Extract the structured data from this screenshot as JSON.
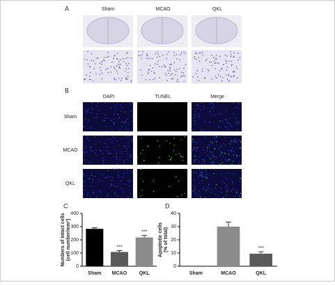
{
  "panel_a": {
    "label": "A",
    "columns": [
      "Sham",
      "MCAO",
      "QKL"
    ]
  },
  "panel_b": {
    "label": "B",
    "columns": [
      "DAPI",
      "TUNEL",
      "Merge"
    ],
    "rows": [
      "Sham",
      "MCAO",
      "QKL"
    ]
  },
  "chart_data": [
    {
      "type": "bar",
      "label": "C",
      "y_label": [
        "Numbers of intact cells",
        "(cell number/mm²)"
      ],
      "categories": [
        "Sham",
        "MCAO",
        "QKL"
      ],
      "values": [
        283,
        108,
        218
      ],
      "errors": [
        8,
        10,
        15
      ],
      "significance": [
        null,
        "***",
        "***"
      ],
      "colors": [
        "#000000",
        "#5a5a5a",
        "#8c8c8c"
      ],
      "ylim": [
        0,
        400
      ],
      "yticks": [
        0,
        100,
        200,
        300,
        400
      ]
    },
    {
      "type": "bar",
      "label": "D",
      "y_label": [
        "Apoptotic cells",
        "(% of total)"
      ],
      "categories": [
        "Sham",
        "MCAO",
        "QKL"
      ],
      "values": [
        0,
        30,
        9.5
      ],
      "errors": [
        0,
        3.5,
        1.5
      ],
      "significance": [
        null,
        null,
        "***"
      ],
      "colors": [
        "#000000",
        "#8c8c8c",
        "#5a5a5a"
      ],
      "ylim": [
        0,
        40
      ],
      "yticks": [
        0,
        10,
        20,
        30,
        40
      ]
    }
  ]
}
